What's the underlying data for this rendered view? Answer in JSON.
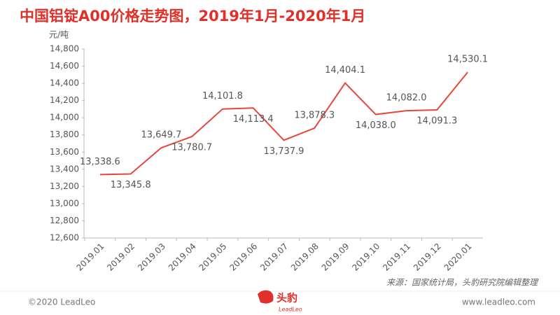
{
  "chart_data": {
    "type": "line",
    "title": "中国铝锭A00价格走势图，2019年1月-2020年1月",
    "y_label": "元/吨",
    "categories": [
      "2019.01",
      "2019.02",
      "2019.03",
      "2019.04",
      "2019.05",
      "2019.06",
      "2019.07",
      "2019.08",
      "2019.09",
      "2019.10",
      "2019.11",
      "2019.12",
      "2020.01"
    ],
    "values": [
      13338.6,
      13345.8,
      13649.7,
      13780.7,
      14101.8,
      14113.4,
      13737.9,
      13878.3,
      14404.1,
      14038.0,
      14082.0,
      14091.3,
      14530.1
    ],
    "value_labels": [
      "13,338.6",
      "13,345.8",
      "13,649.7",
      "13,780.7",
      "14,101.8",
      "14,113.4",
      "13,737.9",
      "13,878.3",
      "14,404.1",
      "14,038.0",
      "14,082.0",
      "14,091.3",
      "14,530.1"
    ],
    "color": "#e8463a",
    "ylim": [
      12600,
      14800
    ],
    "yticks": [
      {
        "value": 12600,
        "label": "12,600"
      },
      {
        "value": 12800,
        "label": "12,800"
      },
      {
        "value": 13000,
        "label": "13,000"
      },
      {
        "value": 13200,
        "label": "13,200"
      },
      {
        "value": 13400,
        "label": "13,400"
      },
      {
        "value": 13600,
        "label": "13,600"
      },
      {
        "value": 13800,
        "label": "13,800"
      },
      {
        "value": 14000,
        "label": "14,000"
      },
      {
        "value": 14200,
        "label": "14,200"
      },
      {
        "value": 14400,
        "label": "14,400"
      },
      {
        "value": 14600,
        "label": "14,600"
      },
      {
        "value": 14800,
        "label": "14,800"
      }
    ],
    "grid": false,
    "source": "来源：国家统计局，头豹研究院编辑整理"
  },
  "footer": {
    "copyright": "©2020 LeadLeo",
    "website": "www.leadleo.com",
    "logo_cn": "头豹",
    "logo_en": "LeadLeo"
  }
}
